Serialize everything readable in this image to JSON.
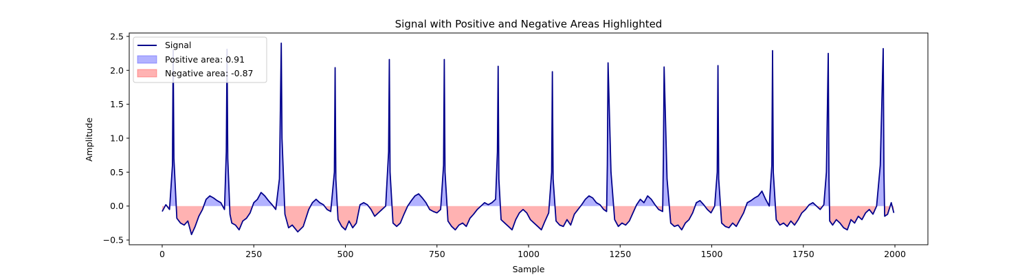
{
  "chart_data": {
    "type": "line",
    "title": "Signal with Positive and Negative Areas Highlighted",
    "xlabel": "Sample",
    "ylabel": "Amplitude",
    "xlim": [
      -90,
      2090
    ],
    "ylim": [
      -0.57,
      2.55
    ],
    "x_ticks": [
      0,
      250,
      500,
      750,
      1000,
      1250,
      1500,
      1750,
      2000
    ],
    "y_ticks": [
      -0.5,
      0.0,
      0.5,
      1.0,
      1.5,
      2.0,
      2.5
    ],
    "x_tick_labels": [
      "0",
      "250",
      "500",
      "750",
      "1000",
      "1250",
      "1500",
      "1750",
      "2000"
    ],
    "y_tick_labels": [
      "−0.5",
      "0.0",
      "0.5",
      "1.0",
      "1.5",
      "2.0",
      "2.5"
    ],
    "legend_position": "upper-left",
    "legend": [
      {
        "label": "Signal",
        "kind": "line",
        "color": "#00008b"
      },
      {
        "label": "Positive area: 0.91",
        "kind": "patch",
        "color": "#0000ff"
      },
      {
        "label": "Negative area: -0.87",
        "kind": "patch",
        "color": "#ff0000"
      }
    ],
    "colors": {
      "signal": "#00008b",
      "positive_fill": "#0000ff",
      "negative_fill": "#ff0000",
      "fill_alpha": 0.3
    },
    "peaks": [
      {
        "x": 30,
        "y": 2.3
      },
      {
        "x": 177,
        "y": 2.31
      },
      {
        "x": 325,
        "y": 2.4
      },
      {
        "x": 472,
        "y": 2.04
      },
      {
        "x": 620,
        "y": 2.16
      },
      {
        "x": 770,
        "y": 2.16
      },
      {
        "x": 917,
        "y": 2.06
      },
      {
        "x": 1065,
        "y": 1.98
      },
      {
        "x": 1215,
        "y": 2.11
      },
      {
        "x": 1368,
        "y": 2.05
      },
      {
        "x": 1517,
        "y": 2.07
      },
      {
        "x": 1666,
        "y": 2.29
      },
      {
        "x": 1820,
        "y": 2.25
      },
      {
        "x": 1970,
        "y": 2.32
      }
    ],
    "series": [
      {
        "name": "Signal",
        "x": [
          0,
          10,
          20,
          28,
          30,
          32,
          40,
          50,
          60,
          70,
          80,
          90,
          100,
          110,
          120,
          130,
          140,
          150,
          160,
          170,
          175,
          177,
          179,
          185,
          190,
          200,
          210,
          220,
          230,
          240,
          250,
          260,
          270,
          280,
          290,
          300,
          310,
          320,
          323,
          325,
          327,
          335,
          345,
          355,
          370,
          385,
          400,
          410,
          420,
          430,
          440,
          450,
          460,
          470,
          472,
          474,
          480,
          490,
          500,
          510,
          520,
          530,
          540,
          550,
          560,
          570,
          580,
          590,
          600,
          610,
          618,
          620,
          622,
          630,
          640,
          650,
          660,
          670,
          680,
          690,
          700,
          710,
          720,
          730,
          740,
          750,
          760,
          768,
          770,
          772,
          780,
          790,
          800,
          810,
          820,
          830,
          840,
          850,
          860,
          870,
          880,
          890,
          900,
          910,
          915,
          917,
          919,
          925,
          935,
          945,
          955,
          965,
          975,
          985,
          995,
          1005,
          1015,
          1025,
          1035,
          1045,
          1055,
          1063,
          1065,
          1067,
          1075,
          1085,
          1095,
          1105,
          1115,
          1125,
          1135,
          1145,
          1155,
          1165,
          1175,
          1185,
          1195,
          1205,
          1213,
          1215,
          1217,
          1225,
          1235,
          1245,
          1255,
          1265,
          1275,
          1285,
          1295,
          1305,
          1315,
          1325,
          1335,
          1345,
          1355,
          1366,
          1368,
          1370,
          1378,
          1388,
          1398,
          1408,
          1418,
          1428,
          1438,
          1448,
          1458,
          1468,
          1478,
          1488,
          1498,
          1508,
          1515,
          1517,
          1519,
          1527,
          1537,
          1547,
          1557,
          1567,
          1577,
          1587,
          1597,
          1607,
          1617,
          1627,
          1637,
          1647,
          1657,
          1664,
          1666,
          1668,
          1676,
          1686,
          1696,
          1706,
          1716,
          1726,
          1736,
          1746,
          1756,
          1766,
          1776,
          1786,
          1796,
          1806,
          1813,
          1818,
          1820,
          1822,
          1830,
          1840,
          1850,
          1860,
          1870,
          1880,
          1890,
          1900,
          1910,
          1920,
          1930,
          1940,
          1950,
          1960,
          1968,
          1970,
          1972,
          1980,
          1990,
          1997
        ],
        "values": [
          -0.08,
          0.02,
          -0.05,
          0.6,
          2.3,
          0.7,
          -0.18,
          -0.25,
          -0.28,
          -0.22,
          -0.42,
          -0.3,
          -0.15,
          -0.05,
          0.1,
          0.15,
          0.12,
          0.08,
          0.05,
          -0.05,
          0.8,
          2.31,
          0.7,
          -0.12,
          -0.25,
          -0.28,
          -0.35,
          -0.22,
          -0.18,
          -0.1,
          0.05,
          0.1,
          0.2,
          0.15,
          0.08,
          0.02,
          -0.05,
          0.4,
          1.6,
          2.4,
          1.0,
          -0.12,
          -0.32,
          -0.28,
          -0.38,
          -0.3,
          -0.05,
          0.05,
          0.1,
          0.05,
          0.02,
          -0.05,
          -0.08,
          0.5,
          2.04,
          0.4,
          -0.2,
          -0.3,
          -0.35,
          -0.22,
          -0.32,
          -0.25,
          0.02,
          0.05,
          0.02,
          -0.05,
          -0.15,
          -0.1,
          -0.05,
          0.0,
          0.8,
          2.16,
          0.5,
          -0.25,
          -0.3,
          -0.25,
          -0.12,
          0.0,
          0.08,
          0.15,
          0.18,
          0.12,
          0.05,
          -0.05,
          -0.08,
          -0.1,
          -0.05,
          0.6,
          2.16,
          0.5,
          -0.22,
          -0.3,
          -0.35,
          -0.28,
          -0.25,
          -0.3,
          -0.18,
          -0.12,
          -0.05,
          0.0,
          0.05,
          0.02,
          0.05,
          0.1,
          0.8,
          2.06,
          0.4,
          -0.2,
          -0.25,
          -0.3,
          -0.35,
          -0.2,
          -0.1,
          -0.05,
          -0.1,
          -0.2,
          -0.25,
          -0.3,
          -0.35,
          -0.22,
          -0.1,
          0.5,
          1.98,
          0.4,
          -0.22,
          -0.28,
          -0.3,
          -0.2,
          -0.28,
          -0.12,
          -0.05,
          0.02,
          0.1,
          0.15,
          0.12,
          0.05,
          0.02,
          -0.05,
          -0.08,
          0.6,
          2.11,
          0.5,
          -0.2,
          -0.3,
          -0.25,
          -0.28,
          -0.22,
          -0.1,
          0.02,
          0.1,
          0.05,
          0.15,
          0.1,
          0.02,
          -0.05,
          -0.08,
          0.7,
          2.05,
          0.4,
          -0.25,
          -0.3,
          -0.28,
          -0.35,
          -0.25,
          -0.2,
          -0.1,
          0.05,
          0.08,
          0.02,
          -0.05,
          -0.1,
          0.0,
          0.5,
          2.07,
          0.4,
          -0.25,
          -0.3,
          -0.32,
          -0.25,
          -0.3,
          -0.2,
          -0.1,
          0.05,
          0.08,
          0.12,
          0.15,
          0.22,
          0.1,
          0.0,
          0.6,
          2.29,
          0.5,
          -0.2,
          -0.28,
          -0.25,
          -0.3,
          -0.22,
          -0.28,
          -0.2,
          -0.1,
          -0.05,
          0.02,
          0.05,
          0.0,
          -0.05,
          0.02,
          0.5,
          2.25,
          0.4,
          -0.22,
          -0.28,
          -0.2,
          -0.25,
          -0.32,
          -0.35,
          -0.2,
          -0.25,
          -0.15,
          -0.2,
          -0.1,
          -0.05,
          -0.12,
          0.0,
          0.6,
          2.32,
          0.5,
          -0.15,
          -0.12,
          0.05,
          -0.1
        ]
      }
    ]
  }
}
